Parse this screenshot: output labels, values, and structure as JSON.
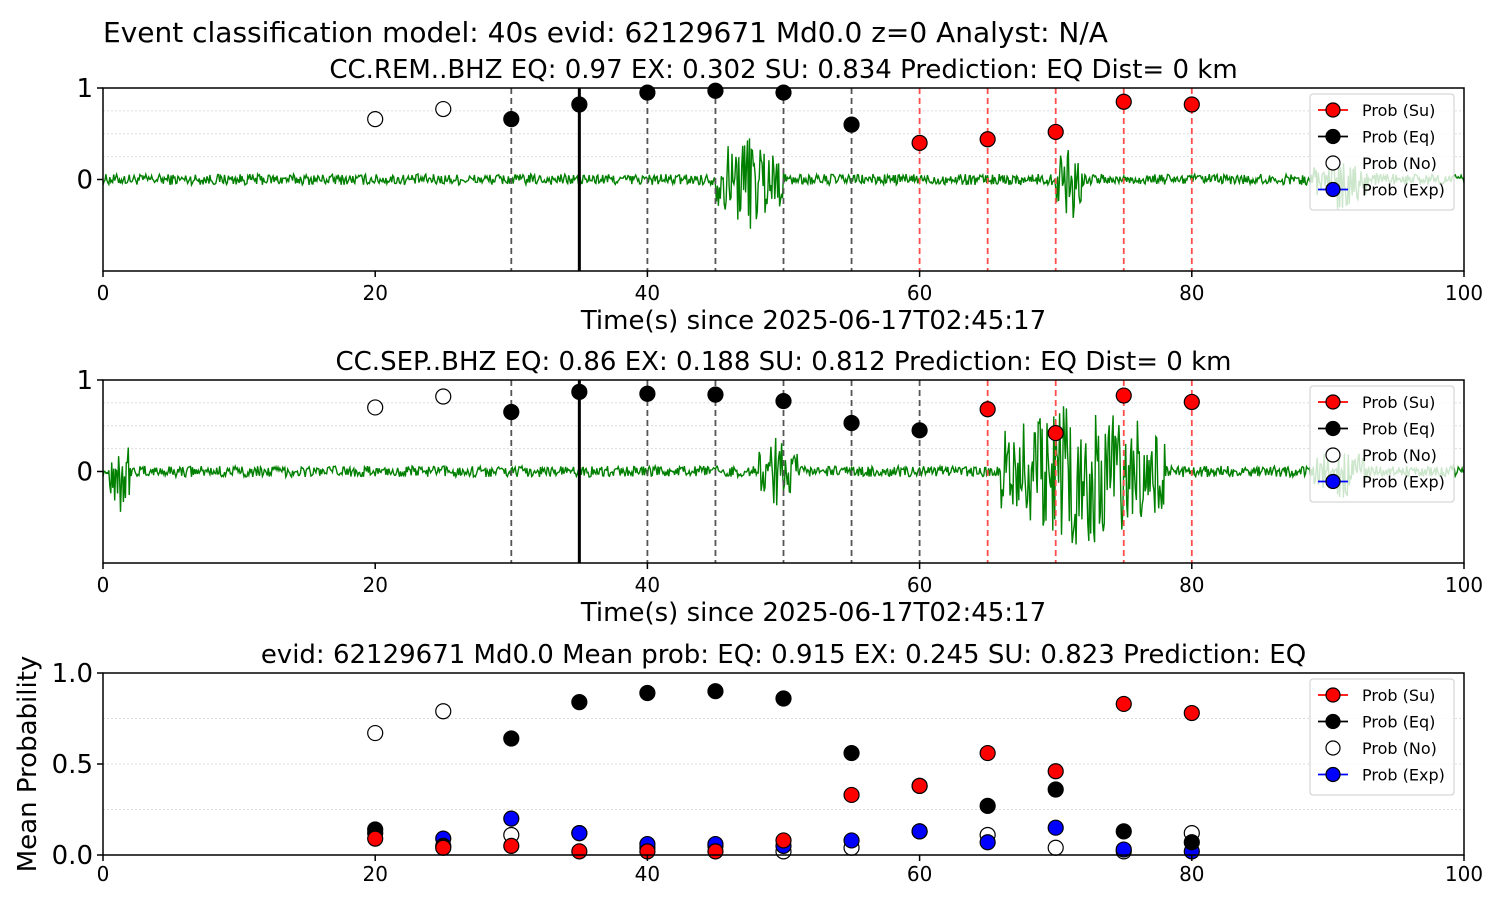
{
  "figure_title": "Event classification model: 40s evid: 62129671 Md0.0 z=0 Analyst: N/A",
  "legend_labels": [
    "Prob (Su)",
    "Prob (Eq)",
    "Prob (No)",
    "Prob (Exp)"
  ],
  "colors": {
    "su": "#ff0000",
    "eq": "#000000",
    "no": "#ffffff",
    "exp": "#0000ff",
    "waveform": "#008000",
    "pick_line": "#ff4d4d",
    "gray_line": "#555555"
  },
  "chart_data": [
    {
      "type": "scatter",
      "title": "CC.REM..BHZ   EQ: 0.97  EX: 0.302  SU: 0.834   Prediction: EQ    Dist= 0 km",
      "xlabel": "Time(s) since 2025-06-17T02:45:17",
      "ylabel": "",
      "xlim": [
        0,
        100
      ],
      "ylim": [
        -1,
        1
      ],
      "x_ticks": [
        "0",
        "20",
        "40",
        "60",
        "80",
        "100"
      ],
      "y_ticks": [
        "0",
        "1"
      ],
      "legend_position": "top-right",
      "waveform_bursts": [
        [
          45,
          50,
          0.55
        ],
        [
          70,
          72,
          0.5
        ],
        [
          89,
          93,
          0.35
        ]
      ],
      "gray_dashed_lines": [
        30,
        40,
        45,
        50,
        55
      ],
      "solid_line": 35,
      "red_dashed_lines": [
        60,
        65,
        70,
        75,
        80
      ],
      "points": [
        {
          "x": 20,
          "y": 0.66,
          "class": "no"
        },
        {
          "x": 25,
          "y": 0.77,
          "class": "no"
        },
        {
          "x": 30,
          "y": 0.66,
          "class": "eq"
        },
        {
          "x": 35,
          "y": 0.82,
          "class": "eq"
        },
        {
          "x": 40,
          "y": 0.95,
          "class": "eq"
        },
        {
          "x": 45,
          "y": 0.97,
          "class": "eq"
        },
        {
          "x": 50,
          "y": 0.95,
          "class": "eq"
        },
        {
          "x": 55,
          "y": 0.6,
          "class": "eq"
        },
        {
          "x": 60,
          "y": 0.4,
          "class": "su"
        },
        {
          "x": 65,
          "y": 0.44,
          "class": "su"
        },
        {
          "x": 70,
          "y": 0.52,
          "class": "su"
        },
        {
          "x": 75,
          "y": 0.85,
          "class": "su"
        },
        {
          "x": 80,
          "y": 0.82,
          "class": "su"
        }
      ]
    },
    {
      "type": "scatter",
      "title": "CC.SEP..BHZ   EQ: 0.86  EX: 0.188  SU: 0.812   Prediction: EQ    Dist= 0 km",
      "xlabel": "Time(s) since 2025-06-17T02:45:17",
      "ylabel": "",
      "xlim": [
        0,
        100
      ],
      "ylim": [
        -1,
        1
      ],
      "x_ticks": [
        "0",
        "20",
        "40",
        "60",
        "80",
        "100"
      ],
      "y_ticks": [
        "0",
        "1"
      ],
      "legend_position": "top-right",
      "waveform_bursts": [
        [
          0.5,
          2,
          0.5
        ],
        [
          48,
          51,
          0.4
        ],
        [
          66,
          78,
          0.85
        ],
        [
          89,
          93,
          0.3
        ]
      ],
      "gray_dashed_lines": [
        30,
        40,
        45,
        50,
        55,
        60
      ],
      "solid_line": 35,
      "red_dashed_lines": [
        65,
        70,
        75,
        80
      ],
      "points": [
        {
          "x": 20,
          "y": 0.7,
          "class": "no"
        },
        {
          "x": 25,
          "y": 0.82,
          "class": "no"
        },
        {
          "x": 30,
          "y": 0.65,
          "class": "eq"
        },
        {
          "x": 35,
          "y": 0.87,
          "class": "eq"
        },
        {
          "x": 40,
          "y": 0.85,
          "class": "eq"
        },
        {
          "x": 45,
          "y": 0.84,
          "class": "eq"
        },
        {
          "x": 50,
          "y": 0.77,
          "class": "eq"
        },
        {
          "x": 55,
          "y": 0.53,
          "class": "eq"
        },
        {
          "x": 60,
          "y": 0.45,
          "class": "eq"
        },
        {
          "x": 65,
          "y": 0.68,
          "class": "su"
        },
        {
          "x": 70,
          "y": 0.42,
          "class": "su"
        },
        {
          "x": 75,
          "y": 0.83,
          "class": "su"
        },
        {
          "x": 80,
          "y": 0.76,
          "class": "su"
        }
      ]
    },
    {
      "type": "scatter",
      "title": "evid: 62129671  Md0.0   Mean prob:   EQ: 0.915  EX: 0.245  SU: 0.823   Prediction: EQ",
      "xlabel": "",
      "ylabel": "Mean Probability",
      "xlim": [
        0,
        100
      ],
      "ylim": [
        0,
        1
      ],
      "x_ticks": [
        "0",
        "20",
        "40",
        "60",
        "80",
        "100"
      ],
      "y_ticks": [
        "0.0",
        "0.5",
        "1.0"
      ],
      "legend_position": "top-right",
      "x": [
        20,
        25,
        30,
        35,
        40,
        45,
        50,
        55,
        60,
        65,
        70,
        75,
        80
      ],
      "series": [
        {
          "name": "Prob (No)",
          "class": "no",
          "values": [
            0.67,
            0.79,
            0.11,
            0.12,
            0.04,
            0.05,
            0.02,
            0.04,
            0.13,
            0.11,
            0.04,
            0.02,
            0.12
          ]
        },
        {
          "name": "Prob (Exp)",
          "class": "exp",
          "values": [
            0.12,
            0.09,
            0.2,
            0.12,
            0.06,
            0.06,
            0.05,
            0.08,
            0.13,
            0.07,
            0.15,
            0.03,
            0.02
          ]
        },
        {
          "name": "Prob (Eq)",
          "class": "eq",
          "values": [
            0.14,
            0.05,
            0.64,
            0.84,
            0.89,
            0.9,
            0.86,
            0.56,
            0.38,
            0.27,
            0.36,
            0.13,
            0.07
          ]
        },
        {
          "name": "Prob (Su)",
          "class": "su",
          "values": [
            0.09,
            0.04,
            0.05,
            0.02,
            0.02,
            0.02,
            0.08,
            0.33,
            0.38,
            0.56,
            0.46,
            0.83,
            0.78
          ]
        }
      ]
    }
  ]
}
